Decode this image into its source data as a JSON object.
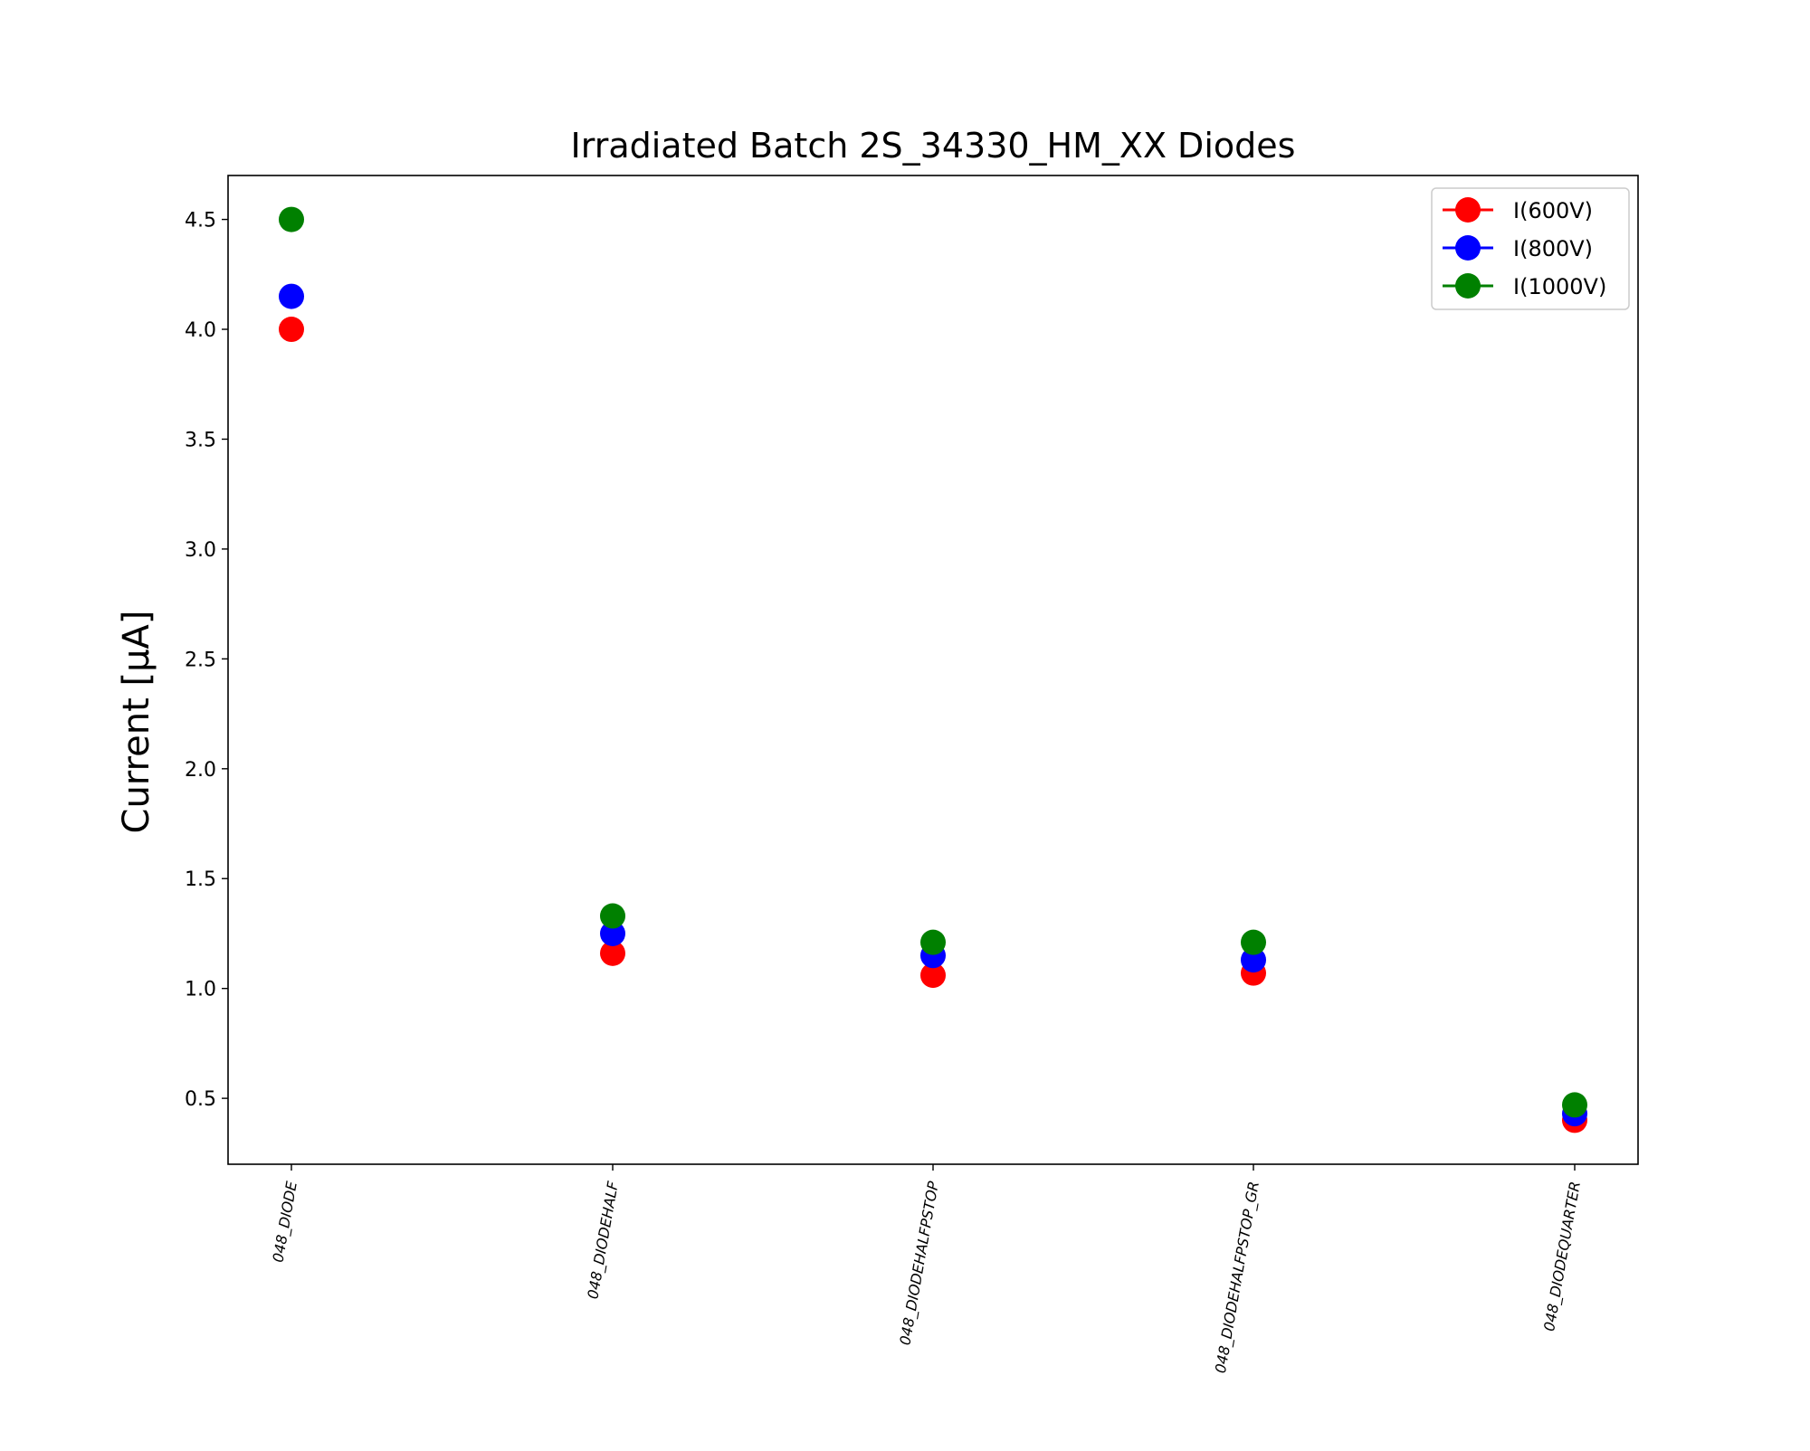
{
  "chart_data": {
    "type": "scatter",
    "title": "Irradiated Batch 2S_34330_HM_XX Diodes",
    "xlabel": "",
    "ylabel": "Current [μA]",
    "categories": [
      "048_DIODE",
      "048_DIODEHALF",
      "048_DIODEHALFPSTOP",
      "048_DIODEHALFPSTOP_GR",
      "048_DIODEQUARTER"
    ],
    "ylim": [
      0.2,
      4.7
    ],
    "yticks": [
      "0.5",
      "1.0",
      "1.5",
      "2.0",
      "2.5",
      "3.0",
      "3.5",
      "4.0",
      "4.5"
    ],
    "grid": false,
    "legend_position": "top-right",
    "series": [
      {
        "name": "I(600V)",
        "color": "#ff0000",
        "values": [
          4.0,
          1.16,
          1.06,
          1.07,
          0.4
        ]
      },
      {
        "name": "I(800V)",
        "color": "#0000ff",
        "values": [
          4.15,
          1.25,
          1.15,
          1.13,
          0.43
        ]
      },
      {
        "name": "I(1000V)",
        "color": "#008000",
        "values": [
          4.5,
          1.33,
          1.21,
          1.21,
          0.47
        ]
      }
    ]
  }
}
